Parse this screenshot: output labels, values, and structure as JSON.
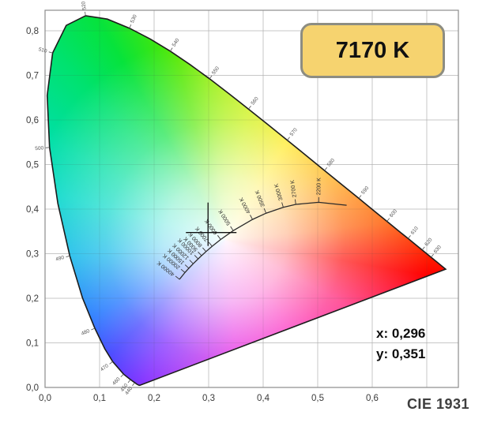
{
  "header": {
    "badge_label": "7170 K"
  },
  "readout": {
    "x_label": "x: 0,296",
    "y_label": "y: 0,351"
  },
  "footer": {
    "diagram_label": "CIE 1931"
  },
  "colors": {
    "badge_fill": "#f6d36f",
    "badge_border": "#8d8d82",
    "grid": "#d9d9d9",
    "locus_outline": "#1c1c1c",
    "planckian_stroke": "#2a2a2a",
    "crosshair": "#111111"
  },
  "chart_data": {
    "type": "area",
    "subtype": "CIE 1931 xy chromaticity diagram with Planckian locus",
    "title": "CIE 1931",
    "xlabel": "",
    "ylabel": "",
    "xlim": [
      0,
      0.758
    ],
    "ylim": [
      0,
      0.846
    ],
    "grid": true,
    "x_grid": [
      0,
      0.1,
      0.2,
      0.3,
      0.4,
      0.5,
      0.6,
      0.7
    ],
    "y_grid": [
      0,
      0.1,
      0.2,
      0.3,
      0.4,
      0.5,
      0.6,
      0.7,
      0.8
    ],
    "x_ticks": [
      {
        "v": 0.0,
        "label": "0,0"
      },
      {
        "v": 0.1,
        "label": "0,1"
      },
      {
        "v": 0.2,
        "label": "0,2"
      },
      {
        "v": 0.3,
        "label": "0,3"
      },
      {
        "v": 0.4,
        "label": "0,4"
      },
      {
        "v": 0.5,
        "label": "0,5"
      },
      {
        "v": 0.6,
        "label": "0,6"
      }
    ],
    "y_ticks": [
      {
        "v": 0.0,
        "label": "0,0"
      },
      {
        "v": 0.1,
        "label": "0,1"
      },
      {
        "v": 0.2,
        "label": "0,2"
      },
      {
        "v": 0.3,
        "label": "0,3"
      },
      {
        "v": 0.4,
        "label": "0,4"
      },
      {
        "v": 0.5,
        "label": "0,5"
      },
      {
        "v": 0.6,
        "label": "0,6"
      },
      {
        "v": 0.7,
        "label": "0,7"
      },
      {
        "v": 0.8,
        "label": "0,8"
      }
    ],
    "spectral_locus": [
      {
        "nm": 380,
        "x": 0.1741,
        "y": 0.005
      },
      {
        "nm": 410,
        "x": 0.1726,
        "y": 0.0048
      },
      {
        "nm": 430,
        "x": 0.1689,
        "y": 0.0069
      },
      {
        "nm": 440,
        "x": 0.1644,
        "y": 0.0109
      },
      {
        "nm": 450,
        "x": 0.1566,
        "y": 0.0177
      },
      {
        "nm": 460,
        "x": 0.144,
        "y": 0.0297
      },
      {
        "nm": 470,
        "x": 0.1241,
        "y": 0.0578
      },
      {
        "nm": 475,
        "x": 0.1096,
        "y": 0.0868
      },
      {
        "nm": 480,
        "x": 0.0913,
        "y": 0.1327
      },
      {
        "nm": 485,
        "x": 0.0687,
        "y": 0.2007
      },
      {
        "nm": 490,
        "x": 0.0454,
        "y": 0.295
      },
      {
        "nm": 495,
        "x": 0.0235,
        "y": 0.4127
      },
      {
        "nm": 500,
        "x": 0.0082,
        "y": 0.5384
      },
      {
        "nm": 505,
        "x": 0.0039,
        "y": 0.6548
      },
      {
        "nm": 510,
        "x": 0.0139,
        "y": 0.7502
      },
      {
        "nm": 515,
        "x": 0.0389,
        "y": 0.812
      },
      {
        "nm": 520,
        "x": 0.0743,
        "y": 0.8338
      },
      {
        "nm": 525,
        "x": 0.1142,
        "y": 0.8262
      },
      {
        "nm": 530,
        "x": 0.1547,
        "y": 0.8059
      },
      {
        "nm": 535,
        "x": 0.1929,
        "y": 0.7816
      },
      {
        "nm": 540,
        "x": 0.2296,
        "y": 0.7543
      },
      {
        "nm": 545,
        "x": 0.2658,
        "y": 0.7243
      },
      {
        "nm": 550,
        "x": 0.3016,
        "y": 0.6923
      },
      {
        "nm": 555,
        "x": 0.3373,
        "y": 0.6589
      },
      {
        "nm": 560,
        "x": 0.3731,
        "y": 0.6245
      },
      {
        "nm": 565,
        "x": 0.4087,
        "y": 0.5896
      },
      {
        "nm": 570,
        "x": 0.4441,
        "y": 0.5547
      },
      {
        "nm": 575,
        "x": 0.4788,
        "y": 0.5202
      },
      {
        "nm": 580,
        "x": 0.5125,
        "y": 0.4866
      },
      {
        "nm": 585,
        "x": 0.5448,
        "y": 0.4544
      },
      {
        "nm": 590,
        "x": 0.5752,
        "y": 0.4242
      },
      {
        "nm": 595,
        "x": 0.6029,
        "y": 0.3965
      },
      {
        "nm": 600,
        "x": 0.627,
        "y": 0.3725
      },
      {
        "nm": 605,
        "x": 0.6482,
        "y": 0.3514
      },
      {
        "nm": 610,
        "x": 0.6658,
        "y": 0.334
      },
      {
        "nm": 615,
        "x": 0.6801,
        "y": 0.3197
      },
      {
        "nm": 620,
        "x": 0.6915,
        "y": 0.3083
      },
      {
        "nm": 630,
        "x": 0.7079,
        "y": 0.292
      },
      {
        "nm": 640,
        "x": 0.719,
        "y": 0.2809
      },
      {
        "nm": 650,
        "x": 0.726,
        "y": 0.274
      },
      {
        "nm": 700,
        "x": 0.7347,
        "y": 0.2653
      }
    ],
    "wavelength_labels": [
      440,
      450,
      460,
      470,
      480,
      490,
      500,
      510,
      520,
      530,
      540,
      550,
      560,
      570,
      580,
      590,
      600,
      610,
      620,
      630
    ],
    "planckian_locus": [
      {
        "cct": 40000,
        "x": 0.2466,
        "y": 0.2425,
        "label": "40000 K"
      },
      {
        "cct": 20000,
        "x": 0.2565,
        "y": 0.2577,
        "label": "20000 K"
      },
      {
        "cct": 15000,
        "x": 0.2637,
        "y": 0.2673,
        "label": "15000 K"
      },
      {
        "cct": 12000,
        "x": 0.2717,
        "y": 0.2776,
        "label": "12000 K"
      },
      {
        "cct": 10000,
        "x": 0.2807,
        "y": 0.2884,
        "label": "10000 K"
      },
      {
        "cct": 9000,
        "x": 0.2869,
        "y": 0.2956,
        "label": "9000 K"
      },
      {
        "cct": 8000,
        "x": 0.2952,
        "y": 0.3048,
        "label": "8000 K"
      },
      {
        "cct": 7000,
        "x": 0.3064,
        "y": 0.3166,
        "label": "7000 K"
      },
      {
        "cct": 6000,
        "x": 0.3221,
        "y": 0.3318,
        "label": "6000 K"
      },
      {
        "cct": 5000,
        "x": 0.3451,
        "y": 0.3516,
        "label": "5000 K"
      },
      {
        "cct": 4000,
        "x": 0.3805,
        "y": 0.3768,
        "label": "4000 K"
      },
      {
        "cct": 3500,
        "x": 0.4053,
        "y": 0.3907,
        "label": "3500 K"
      },
      {
        "cct": 3000,
        "x": 0.4369,
        "y": 0.4041,
        "label": "3000 K"
      },
      {
        "cct": 2700,
        "x": 0.4599,
        "y": 0.4106,
        "label": "2700 K"
      },
      {
        "cct": 2200,
        "x": 0.5018,
        "y": 0.4153,
        "label": "2200 K"
      },
      {
        "cct": 1900,
        "x": 0.553,
        "y": 0.4086,
        "label": ""
      }
    ],
    "measured_point": {
      "x": 0.296,
      "y": 0.351,
      "cct_label": "7170 K"
    }
  }
}
